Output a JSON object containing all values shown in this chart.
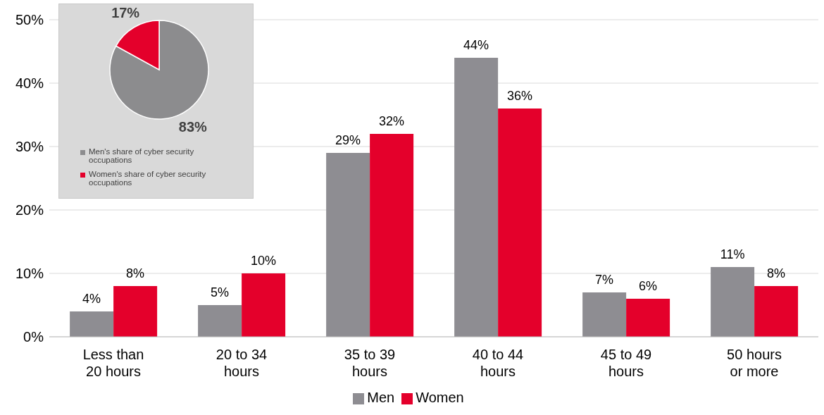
{
  "chart_data": [
    {
      "type": "bar",
      "categories": [
        "Less than 20 hours",
        "20 to 34 hours",
        "35 to 39 hours",
        "40 to 44 hours",
        "45 to 49 hours",
        "50 hours or more"
      ],
      "series": [
        {
          "name": "Men",
          "color": "#8e8d92",
          "values": [
            4,
            5,
            29,
            44,
            7,
            11
          ],
          "value_labels": [
            "4%",
            "5%",
            "29%",
            "44%",
            "7%",
            "11%"
          ]
        },
        {
          "name": "Women",
          "color": "#e4002b",
          "values": [
            8,
            10,
            32,
            36,
            6,
            8
          ],
          "value_labels": [
            "8%",
            "10%",
            "32%",
            "36%",
            "6%",
            "8%"
          ]
        }
      ],
      "ylim": [
        0,
        50
      ],
      "yticks": [
        {
          "value": 0,
          "label": "0%"
        },
        {
          "value": 10,
          "label": "10%"
        },
        {
          "value": 20,
          "label": "20%"
        },
        {
          "value": 30,
          "label": "30%"
        },
        {
          "value": 40,
          "label": "40%"
        },
        {
          "value": 50,
          "label": "50%"
        }
      ],
      "grid": "y",
      "legend": "bottom"
    },
    {
      "type": "pie",
      "categories": [
        "Men's share of cyber security occupations",
        "Women's share of cyber security occupations"
      ],
      "values": [
        83,
        17
      ],
      "colors": [
        "#8c8c8e",
        "#e4002b"
      ],
      "value_labels": [
        "83%",
        "17%"
      ],
      "legend": "bottom"
    }
  ]
}
